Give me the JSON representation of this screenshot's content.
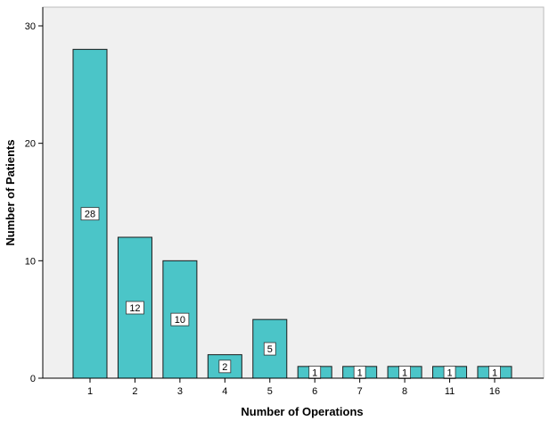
{
  "chart_data": {
    "type": "bar",
    "title": "",
    "xlabel": "Number of Operations",
    "ylabel": "Number of Patients",
    "categories": [
      "1",
      "2",
      "3",
      "4",
      "5",
      "6",
      "7",
      "8",
      "11",
      "16"
    ],
    "values": [
      28,
      12,
      10,
      2,
      5,
      1,
      1,
      1,
      1,
      1
    ],
    "data_labels": [
      "28",
      "12",
      "10",
      "2",
      "5",
      "1",
      "1",
      "1",
      "1",
      "1"
    ],
    "ylim": [
      0,
      30
    ],
    "yticks": [
      0,
      10,
      20,
      30
    ],
    "grid": false,
    "legend": "none",
    "colors": {
      "bar_fill": "#4bc5c8",
      "bar_stroke": "#1a1a1a",
      "plot_background": "#f0f0f0",
      "page_background": "#ffffff",
      "axis": "#000000"
    }
  }
}
